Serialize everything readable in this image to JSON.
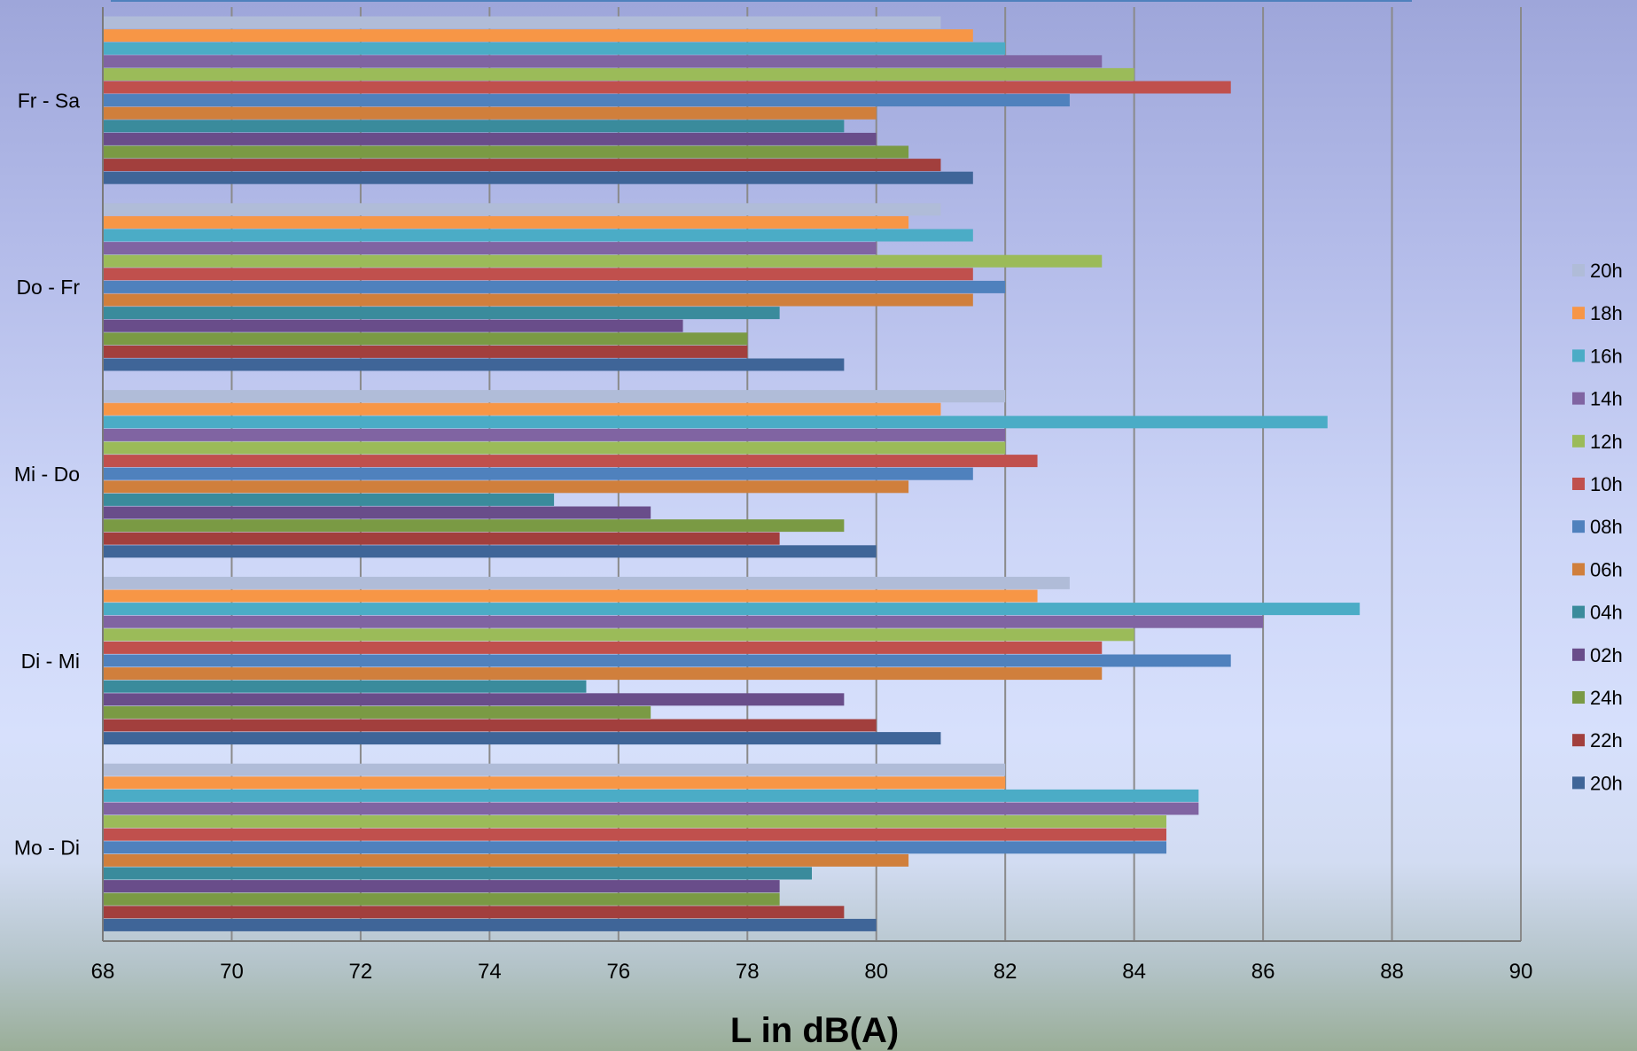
{
  "chart_data": {
    "type": "bar",
    "orientation": "horizontal",
    "xlabel": "L in dB(A)",
    "xlim": [
      68,
      90
    ],
    "xticks": [
      "68",
      "70",
      "72",
      "74",
      "76",
      "78",
      "80",
      "82",
      "84",
      "86",
      "88",
      "90"
    ],
    "grid": true,
    "legend_position": "right",
    "categories": [
      "Fr - Sa",
      "Do - Fr",
      "Mi - Do",
      "Di - Mi",
      "Mo - Di"
    ],
    "series": [
      {
        "name": "20h",
        "color": "#b0bcd8",
        "values": [
          81,
          81,
          82,
          83,
          82
        ]
      },
      {
        "name": "18h",
        "color": "#f79646",
        "values": [
          81.5,
          80.5,
          81,
          82.5,
          82
        ]
      },
      {
        "name": "16h",
        "color": "#4bacc6",
        "values": [
          82,
          81.5,
          87,
          87.5,
          85
        ]
      },
      {
        "name": "14h",
        "color": "#8064a2",
        "values": [
          83.5,
          80,
          82,
          86,
          85
        ]
      },
      {
        "name": "12h",
        "color": "#9bbb59",
        "values": [
          84,
          83.5,
          82,
          84,
          84.5
        ]
      },
      {
        "name": "10h",
        "color": "#c0504d",
        "values": [
          85.5,
          81.5,
          82.5,
          83.5,
          84.5
        ]
      },
      {
        "name": "08h",
        "color": "#4f81bd",
        "values": [
          83,
          82,
          81.5,
          85.5,
          84.5
        ]
      },
      {
        "name": "06h",
        "color": "#d07f3c",
        "values": [
          80,
          81.5,
          80.5,
          83.5,
          80.5
        ]
      },
      {
        "name": "04h",
        "color": "#3a8b9c",
        "values": [
          79.5,
          78.5,
          75,
          75.5,
          79
        ]
      },
      {
        "name": "02h",
        "color": "#694d8a",
        "values": [
          80,
          77,
          76.5,
          79.5,
          78.5
        ]
      },
      {
        "name": "24h",
        "color": "#7a9a44",
        "values": [
          80.5,
          78,
          79.5,
          76.5,
          78.5
        ]
      },
      {
        "name": "22h",
        "color": "#a23f3d",
        "values": [
          81,
          78,
          78.5,
          80,
          79.5
        ]
      },
      {
        "name": "20h",
        "color": "#3f6598",
        "values": [
          81.5,
          79.5,
          80,
          81,
          80
        ]
      }
    ]
  }
}
